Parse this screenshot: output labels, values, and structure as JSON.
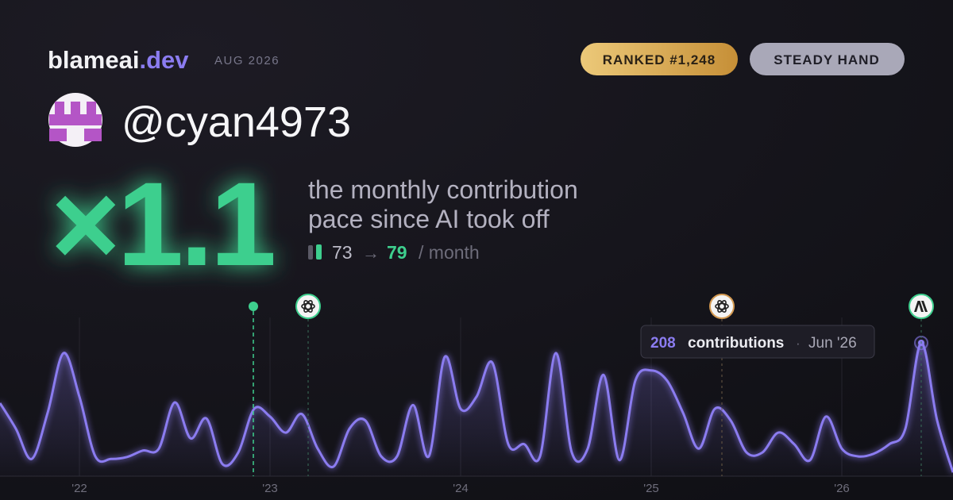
{
  "header": {
    "brand": "blameai",
    "brand_suffix": ".dev",
    "period": "AUG 2026",
    "badges": [
      "RANKED #1,248",
      "STEADY HAND"
    ],
    "username": "@cyan4973"
  },
  "headline": {
    "multiplier": "×1.1",
    "tagline": [
      "the monthly contribution",
      "pace since AI took off"
    ],
    "before": "73",
    "arrow": "→",
    "after": "79",
    "unit": "/ month"
  },
  "tooltip": {
    "label": "contributions",
    "separator": "·",
    "date": "Jun '26"
  },
  "chart_data": {
    "type": "line",
    "categories": [
      null,
      null,
      null,
      null,
      null,
      "'22",
      null,
      null,
      null,
      null,
      null,
      null,
      null,
      null,
      null,
      null,
      null,
      "'23",
      null,
      null,
      null,
      null,
      null,
      null,
      null,
      null,
      null,
      null,
      null,
      "'24",
      null,
      null,
      null,
      null,
      null,
      null,
      null,
      null,
      null,
      null,
      null,
      "'25",
      null,
      null,
      null,
      null,
      null,
      null,
      null,
      null,
      null,
      null,
      null,
      "'26",
      null,
      null,
      null,
      null,
      null,
      null,
      null
    ],
    "series": [
      {
        "name": "contributions",
        "color": "#8b7cf0",
        "values": [
          114,
          74,
          27,
          99,
          192,
          124,
          31,
          27,
          30,
          40,
          43,
          115,
          59,
          90,
          19,
          37,
          105,
          93,
          68,
          97,
          43,
          15,
          74,
          87,
          31,
          31,
          111,
          31,
          186,
          105,
          124,
          177,
          50,
          50,
          31,
          192,
          37,
          43,
          158,
          25,
          149,
          165,
          149,
          99,
          43,
          105,
          87,
          37,
          37,
          68,
          50,
          25,
          93,
          43,
          31,
          35,
          50,
          74,
          208,
          87,
          6
        ]
      }
    ],
    "ylim": [
      0,
      220
    ]
  }
}
